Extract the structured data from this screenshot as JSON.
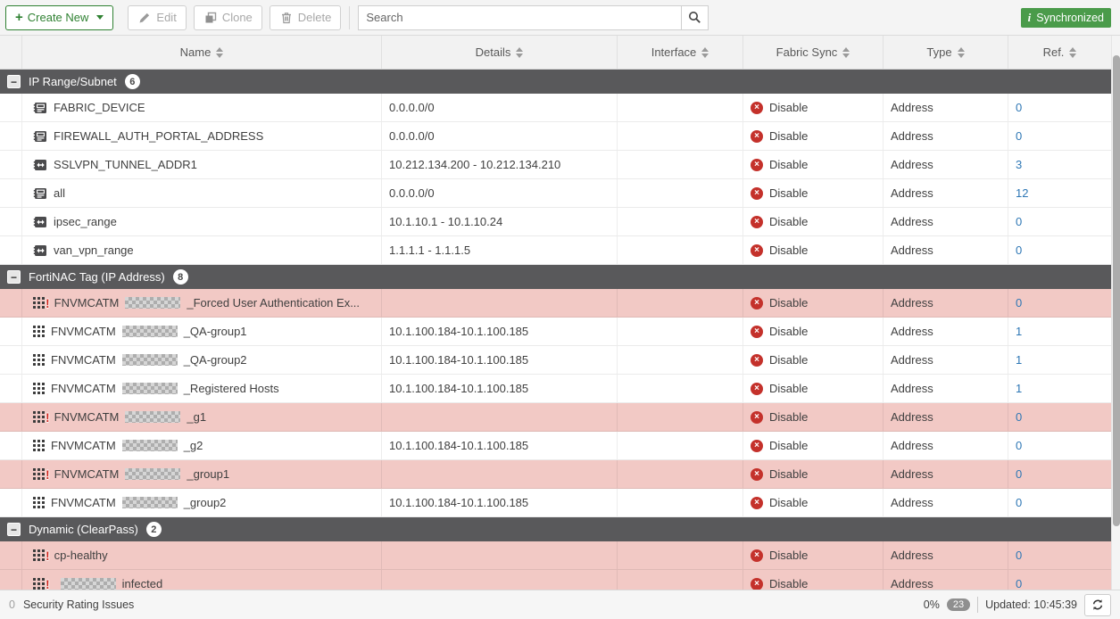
{
  "toolbar": {
    "create_new_label": "Create New",
    "edit_label": "Edit",
    "clone_label": "Clone",
    "delete_label": "Delete",
    "search_placeholder": "Search",
    "synchronized_label": "Synchronized"
  },
  "columns": [
    {
      "label": "Name"
    },
    {
      "label": "Details"
    },
    {
      "label": "Interface"
    },
    {
      "label": "Fabric Sync"
    },
    {
      "label": "Type"
    },
    {
      "label": "Ref."
    }
  ],
  "colors": {
    "accent_green": "#2f8132",
    "sync_badge_green": "#4a9b4a",
    "disable_red": "#c4312b",
    "link_blue": "#2e77b5",
    "section_gray": "#59595b",
    "highlight_pink": "#f2c9c5"
  },
  "sections": [
    {
      "title": "IP Range/Subnet",
      "count": "6",
      "rows": [
        {
          "icon": "subnet-icon",
          "name_prefix": "FABRIC_DEVICE",
          "name_redacted": false,
          "name_suffix": "",
          "details": "0.0.0.0/0",
          "interface": "",
          "fabric_sync": "Disable",
          "type": "Address",
          "ref": "0",
          "highlight": false,
          "alert": false
        },
        {
          "icon": "subnet-icon",
          "name_prefix": "FIREWALL_AUTH_PORTAL_ADDRESS",
          "name_redacted": false,
          "name_suffix": "",
          "details": "0.0.0.0/0",
          "interface": "",
          "fabric_sync": "Disable",
          "type": "Address",
          "ref": "0",
          "highlight": false,
          "alert": false
        },
        {
          "icon": "range-icon",
          "name_prefix": "SSLVPN_TUNNEL_ADDR1",
          "name_redacted": false,
          "name_suffix": "",
          "details": "10.212.134.200 - 10.212.134.210",
          "interface": "",
          "fabric_sync": "Disable",
          "type": "Address",
          "ref": "3",
          "highlight": false,
          "alert": false
        },
        {
          "icon": "subnet-icon",
          "name_prefix": "all",
          "name_redacted": false,
          "name_suffix": "",
          "details": "0.0.0.0/0",
          "interface": "",
          "fabric_sync": "Disable",
          "type": "Address",
          "ref": "12",
          "highlight": false,
          "alert": false
        },
        {
          "icon": "range-icon",
          "name_prefix": "ipsec_range",
          "name_redacted": false,
          "name_suffix": "",
          "details": "10.1.10.1 - 10.1.10.24",
          "interface": "",
          "fabric_sync": "Disable",
          "type": "Address",
          "ref": "0",
          "highlight": false,
          "alert": false
        },
        {
          "icon": "range-icon",
          "name_prefix": "van_vpn_range",
          "name_redacted": false,
          "name_suffix": "",
          "details": "1.1.1.1 - 1.1.1.5",
          "interface": "",
          "fabric_sync": "Disable",
          "type": "Address",
          "ref": "0",
          "highlight": false,
          "alert": false
        }
      ]
    },
    {
      "title": "FortiNAC Tag (IP Address)",
      "count": "8",
      "rows": [
        {
          "icon": "fortinac-tag-icon",
          "name_prefix": "FNVMCATM",
          "name_redacted": true,
          "name_suffix": "_Forced User Authentication Ex...",
          "details": "",
          "interface": "",
          "fabric_sync": "Disable",
          "type": "Address",
          "ref": "0",
          "highlight": true,
          "alert": true
        },
        {
          "icon": "fortinac-tag-icon",
          "name_prefix": "FNVMCATM",
          "name_redacted": true,
          "name_suffix": "_QA-group1",
          "details": "10.1.100.184-10.1.100.185",
          "interface": "",
          "fabric_sync": "Disable",
          "type": "Address",
          "ref": "1",
          "highlight": false,
          "alert": false
        },
        {
          "icon": "fortinac-tag-icon",
          "name_prefix": "FNVMCATM",
          "name_redacted": true,
          "name_suffix": "_QA-group2",
          "details": "10.1.100.184-10.1.100.185",
          "interface": "",
          "fabric_sync": "Disable",
          "type": "Address",
          "ref": "1",
          "highlight": false,
          "alert": false
        },
        {
          "icon": "fortinac-tag-icon",
          "name_prefix": "FNVMCATM",
          "name_redacted": true,
          "name_suffix": "_Registered Hosts",
          "details": "10.1.100.184-10.1.100.185",
          "interface": "",
          "fabric_sync": "Disable",
          "type": "Address",
          "ref": "1",
          "highlight": false,
          "alert": false
        },
        {
          "icon": "fortinac-tag-icon",
          "name_prefix": "FNVMCATM",
          "name_redacted": true,
          "name_suffix": "_g1",
          "details": "",
          "interface": "",
          "fabric_sync": "Disable",
          "type": "Address",
          "ref": "0",
          "highlight": true,
          "alert": true
        },
        {
          "icon": "fortinac-tag-icon",
          "name_prefix": "FNVMCATM",
          "name_redacted": true,
          "name_suffix": "_g2",
          "details": "10.1.100.184-10.1.100.185",
          "interface": "",
          "fabric_sync": "Disable",
          "type": "Address",
          "ref": "0",
          "highlight": false,
          "alert": false
        },
        {
          "icon": "fortinac-tag-icon",
          "name_prefix": "FNVMCATM",
          "name_redacted": true,
          "name_suffix": "_group1",
          "details": "",
          "interface": "",
          "fabric_sync": "Disable",
          "type": "Address",
          "ref": "0",
          "highlight": true,
          "alert": true
        },
        {
          "icon": "fortinac-tag-icon",
          "name_prefix": "FNVMCATM",
          "name_redacted": true,
          "name_suffix": "_group2",
          "details": "10.1.100.184-10.1.100.185",
          "interface": "",
          "fabric_sync": "Disable",
          "type": "Address",
          "ref": "0",
          "highlight": false,
          "alert": false
        }
      ]
    },
    {
      "title": "Dynamic (ClearPass)",
      "count": "2",
      "rows": [
        {
          "icon": "fortinac-tag-icon",
          "name_prefix": "cp-healthy",
          "name_redacted": false,
          "name_suffix": "",
          "details": "",
          "interface": "",
          "fabric_sync": "Disable",
          "type": "Address",
          "ref": "0",
          "highlight": true,
          "alert": true
        },
        {
          "icon": "fortinac-tag-icon",
          "name_prefix": "",
          "name_redacted": true,
          "name_suffix": "infected",
          "details": "",
          "interface": "",
          "fabric_sync": "Disable",
          "type": "Address",
          "ref": "0",
          "highlight": true,
          "alert": true
        }
      ]
    }
  ],
  "status_bar": {
    "rating_count": "0",
    "rating_label": "Security Rating Issues",
    "percent": "0%",
    "notification_count": "23",
    "updated_label": "Updated: 10:45:39"
  }
}
